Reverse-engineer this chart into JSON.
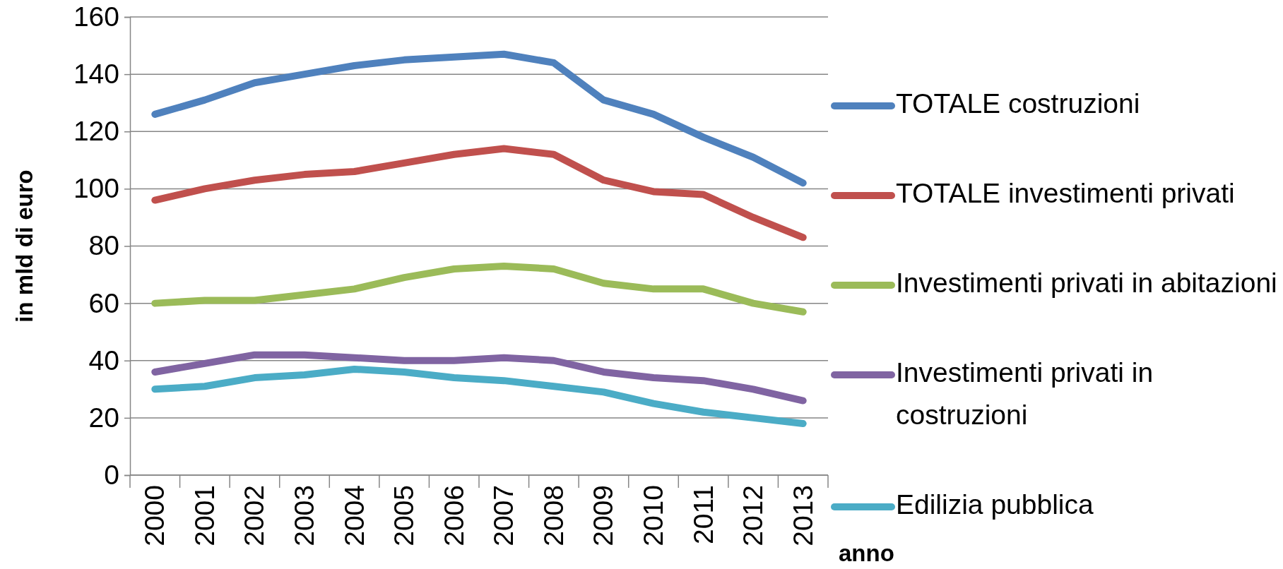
{
  "chart_data": {
    "type": "line",
    "xlabel": "anno",
    "ylabel": "in mld di euro",
    "categories": [
      "2000",
      "2001",
      "2002",
      "2003",
      "2004",
      "2005",
      "2006",
      "2007",
      "2008",
      "2009",
      "2010",
      "2011",
      "2012",
      "2013"
    ],
    "series": [
      {
        "name": "TOTALE costruzioni",
        "color": "#4f81bd",
        "values": [
          126,
          131,
          137,
          140,
          143,
          145,
          146,
          147,
          144,
          131,
          126,
          118,
          111,
          102
        ]
      },
      {
        "name": "TOTALE investimenti privati",
        "color": "#c0504d",
        "values": [
          96,
          100,
          103,
          105,
          106,
          109,
          112,
          114,
          112,
          103,
          99,
          98,
          90,
          83
        ]
      },
      {
        "name": "Investimenti privati in abitazioni",
        "color": "#9bbb59",
        "values": [
          60,
          61,
          61,
          63,
          65,
          69,
          72,
          73,
          72,
          67,
          65,
          65,
          60,
          57
        ]
      },
      {
        "name": "Investimenti privati in costruzioni",
        "color": "#8064a2",
        "values": [
          36,
          39,
          42,
          42,
          41,
          40,
          40,
          41,
          40,
          36,
          34,
          33,
          30,
          26
        ]
      },
      {
        "name": "Edilizia pubblica",
        "color": "#4bacc6",
        "values": [
          30,
          31,
          34,
          35,
          37,
          36,
          34,
          33,
          31,
          29,
          25,
          22,
          20,
          18
        ]
      }
    ],
    "ylim": [
      0,
      160
    ],
    "yticks": [
      0,
      20,
      40,
      60,
      80,
      100,
      120,
      140,
      160
    ],
    "grid": "y",
    "legend": "right",
    "marker": "none",
    "line_style": "solid"
  }
}
